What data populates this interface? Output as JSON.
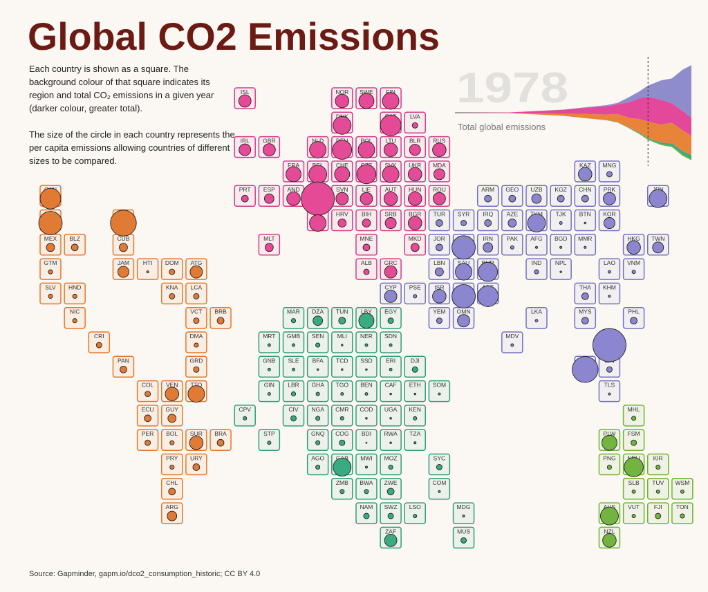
{
  "header": {
    "title": "Global CO2 Emissions"
  },
  "description": [
    "Each country is shown as a square. The background colour of that square indicates its region and total CO₂ emissions in a given year (darker colour, greater total).",
    "The size of the circle in each country represents the per capita emissions allowing countries of different sizes to be compared."
  ],
  "year": 1978,
  "total_label": "Total global emissions",
  "source": "Source: Gapminder, gapm.io/dco2_consumption_historic; CC BY 4.0",
  "region_colors": {
    "am": {
      "border": "#e8762a",
      "fill": "#e07a35"
    },
    "eu": {
      "border": "#d63a8c",
      "fill": "#e54a96"
    },
    "as": {
      "border": "#7470c2",
      "fill": "#8b86cf"
    },
    "af": {
      "border": "#2f9e7a",
      "fill": "#3aaa85"
    },
    "oc": {
      "border": "#6cb52f",
      "fill": "#72b43f"
    }
  },
  "total_chart": {
    "x": [
      1800,
      1850,
      1900,
      1920,
      1940,
      1950,
      1960,
      1970,
      1978,
      1990,
      2000,
      2010,
      2018
    ],
    "series": [
      {
        "color": "#6cb52f",
        "values": [
          0,
          0,
          0.01,
          0.02,
          0.03,
          0.05,
          0.1,
          0.15,
          0.2,
          0.3,
          0.4,
          0.5,
          0.5
        ]
      },
      {
        "color": "#3aaa85",
        "values": [
          0,
          0,
          0,
          0.02,
          0.05,
          0.1,
          0.15,
          0.3,
          0.4,
          0.6,
          0.9,
          1.2,
          1.4
        ]
      },
      {
        "color": "#e8843a",
        "values": [
          0,
          0.03,
          0.7,
          1.5,
          2,
          3,
          3.5,
          5,
          6,
          6.5,
          7.5,
          7.5,
          7
        ]
      },
      {
        "color": "#e3489a",
        "values": [
          0.03,
          0.2,
          1.5,
          2.2,
          3,
          3.5,
          5.5,
          7.5,
          9,
          9,
          7,
          7,
          6.5
        ]
      },
      {
        "color": "#8f8ccc",
        "values": [
          0,
          0,
          0.05,
          0.2,
          0.4,
          0.5,
          1.8,
          2.5,
          4,
          7,
          9,
          15,
          19
        ]
      }
    ]
  },
  "countries": [
    {
      "code": "ISL",
      "region": "eu",
      "per_capita": 5
    },
    {
      "code": "NOR",
      "region": "eu",
      "per_capita": 6
    },
    {
      "code": "SWE",
      "region": "eu",
      "per_capita": 7.5
    },
    {
      "code": "FIN",
      "region": "eu",
      "per_capita": 9
    },
    {
      "code": "DNK",
      "region": "eu",
      "per_capita": 10.5
    },
    {
      "code": "EST",
      "region": "eu",
      "per_capita": 14
    },
    {
      "code": "LVA",
      "region": "eu",
      "per_capita": 1
    },
    {
      "code": "IRL",
      "region": "eu",
      "per_capita": 4.5
    },
    {
      "code": "GBR",
      "region": "eu",
      "per_capita": 5
    },
    {
      "code": "NLD",
      "region": "eu",
      "per_capita": 9
    },
    {
      "code": "DEU",
      "region": "eu",
      "per_capita": 12
    },
    {
      "code": "POL",
      "region": "eu",
      "per_capita": 9
    },
    {
      "code": "LTU",
      "region": "eu",
      "per_capita": 6
    },
    {
      "code": "BLR",
      "region": "eu",
      "per_capita": 4
    },
    {
      "code": "RUS",
      "region": "eu",
      "per_capita": 6
    },
    {
      "code": "FRA",
      "region": "eu",
      "per_capita": 7.5
    },
    {
      "code": "BEL",
      "region": "eu",
      "per_capita": 10.5
    },
    {
      "code": "CHE",
      "region": "eu",
      "per_capita": 7.5
    },
    {
      "code": "CZE",
      "region": "eu",
      "per_capita": 12
    },
    {
      "code": "SVK",
      "region": "eu",
      "per_capita": 9
    },
    {
      "code": "UKR",
      "region": "eu",
      "per_capita": 6
    },
    {
      "code": "MDA",
      "region": "eu",
      "per_capita": 4
    },
    {
      "code": "KAZ",
      "region": "as",
      "per_capita": 6
    },
    {
      "code": "MNG",
      "region": "as",
      "per_capita": 1
    },
    {
      "code": "CAN",
      "region": "am",
      "per_capita": 14
    },
    {
      "code": "PRT",
      "region": "eu",
      "per_capita": 1.5
    },
    {
      "code": "ESP",
      "region": "eu",
      "per_capita": 3
    },
    {
      "code": "AND",
      "region": "eu",
      "per_capita": 6
    },
    {
      "code": "LUX",
      "region": "eu",
      "per_capita": 36
    },
    {
      "code": "SVN",
      "region": "eu",
      "per_capita": 5
    },
    {
      "code": "LIE",
      "region": "eu",
      "per_capita": 5
    },
    {
      "code": "AUT",
      "region": "eu",
      "per_capita": 6
    },
    {
      "code": "HUN",
      "region": "eu",
      "per_capita": 6
    },
    {
      "code": "ROU",
      "region": "eu",
      "per_capita": 5
    },
    {
      "code": "ARM",
      "region": "as",
      "per_capita": 1.5
    },
    {
      "code": "GEO",
      "region": "as",
      "per_capita": 1.5
    },
    {
      "code": "UZB",
      "region": "as",
      "per_capita": 3
    },
    {
      "code": "KGZ",
      "region": "as",
      "per_capita": 1.5
    },
    {
      "code": "CHN",
      "region": "as",
      "per_capita": 1.5
    },
    {
      "code": "PRK",
      "region": "as",
      "per_capita": 5
    },
    {
      "code": "JPN",
      "region": "as",
      "per_capita": 10.5
    },
    {
      "code": "USA",
      "region": "am",
      "per_capita": 18
    },
    {
      "code": "BHS",
      "region": "am",
      "per_capita": 22
    },
    {
      "code": "ITA",
      "region": "eu",
      "per_capita": 9
    },
    {
      "code": "HRV",
      "region": "eu",
      "per_capita": 2.2
    },
    {
      "code": "BIH",
      "region": "eu",
      "per_capita": 2.2
    },
    {
      "code": "SRB",
      "region": "eu",
      "per_capita": 4
    },
    {
      "code": "BGR",
      "region": "eu",
      "per_capita": 6
    },
    {
      "code": "TUR",
      "region": "as",
      "per_capita": 1.5
    },
    {
      "code": "SYR",
      "region": "as",
      "per_capita": 1
    },
    {
      "code": "IRQ",
      "region": "as",
      "per_capita": 1.5
    },
    {
      "code": "AZE",
      "region": "as",
      "per_capita": 2.2
    },
    {
      "code": "TKM",
      "region": "as",
      "per_capita": 10.5
    },
    {
      "code": "TJK",
      "region": "as",
      "per_capita": 0.25
    },
    {
      "code": "BTN",
      "region": "as",
      "per_capita": 0.1
    },
    {
      "code": "KOR",
      "region": "as",
      "per_capita": 4
    },
    {
      "code": "MEX",
      "region": "am",
      "per_capita": 2.2
    },
    {
      "code": "BLZ",
      "region": "am",
      "per_capita": 1.5
    },
    {
      "code": "CUB",
      "region": "am",
      "per_capita": 2.2
    },
    {
      "code": "MLT",
      "region": "eu",
      "per_capita": 2.2
    },
    {
      "code": "MNE",
      "region": "eu",
      "per_capita": 1.5
    },
    {
      "code": "MKD",
      "region": "eu",
      "per_capita": 2.2
    },
    {
      "code": "JOR",
      "region": "as",
      "per_capita": 1.5
    },
    {
      "code": "KWT",
      "region": "as",
      "per_capita": 18
    },
    {
      "code": "IRN",
      "region": "as",
      "per_capita": 3
    },
    {
      "code": "PAK",
      "region": "as",
      "per_capita": 0.4
    },
    {
      "code": "AFG",
      "region": "as",
      "per_capita": 0.15
    },
    {
      "code": "BGD",
      "region": "as",
      "per_capita": 0.15
    },
    {
      "code": "MMR",
      "region": "as",
      "per_capita": 0.15
    },
    {
      "code": "HKG",
      "region": "as",
      "per_capita": 6
    },
    {
      "code": "TWN",
      "region": "as",
      "per_capita": 4
    },
    {
      "code": "GTM",
      "region": "am",
      "per_capita": 0.6
    },
    {
      "code": "JAM",
      "region": "am",
      "per_capita": 4
    },
    {
      "code": "HTI",
      "region": "am",
      "per_capita": 0.15
    },
    {
      "code": "DOM",
      "region": "am",
      "per_capita": 1
    },
    {
      "code": "ATG",
      "region": "am",
      "per_capita": 5
    },
    {
      "code": "ALB",
      "region": "eu",
      "per_capita": 1
    },
    {
      "code": "GRC",
      "region": "eu",
      "per_capita": 5
    },
    {
      "code": "LBN",
      "region": "as",
      "per_capita": 2.2
    },
    {
      "code": "SAU",
      "region": "as",
      "per_capita": 9
    },
    {
      "code": "BHR",
      "region": "as",
      "per_capita": 12
    },
    {
      "code": "IND",
      "region": "as",
      "per_capita": 0.6
    },
    {
      "code": "NPL",
      "region": "as",
      "per_capita": 0.1
    },
    {
      "code": "LAO",
      "region": "as",
      "per_capita": 0.25
    },
    {
      "code": "VNM",
      "region": "as",
      "per_capita": 0.4
    },
    {
      "code": "SLV",
      "region": "am",
      "per_capita": 0.6
    },
    {
      "code": "HND",
      "region": "am",
      "per_capita": 0.6
    },
    {
      "code": "KNA",
      "region": "am",
      "per_capita": 1
    },
    {
      "code": "LCA",
      "region": "am",
      "per_capita": 1
    },
    {
      "code": "CYP",
      "region": "as",
      "per_capita": 5
    },
    {
      "code": "PSE",
      "region": "as",
      "per_capita": 0.4
    },
    {
      "code": "ISR",
      "region": "as",
      "per_capita": 6
    },
    {
      "code": "QAT",
      "region": "as",
      "per_capita": 18
    },
    {
      "code": "ARE",
      "region": "as",
      "per_capita": 14
    },
    {
      "code": "THA",
      "region": "as",
      "per_capita": 1.5
    },
    {
      "code": "KHM",
      "region": "as",
      "per_capita": 0.15
    },
    {
      "code": "NIC",
      "region": "am",
      "per_capita": 0.6
    },
    {
      "code": "VCT",
      "region": "am",
      "per_capita": 1
    },
    {
      "code": "BRB",
      "region": "am",
      "per_capita": 1.5
    },
    {
      "code": "MAR",
      "region": "af",
      "per_capita": 0.6
    },
    {
      "code": "DZA",
      "region": "af",
      "per_capita": 3
    },
    {
      "code": "TUN",
      "region": "af",
      "per_capita": 1.5
    },
    {
      "code": "LBY",
      "region": "af",
      "per_capita": 7.5
    },
    {
      "code": "EGY",
      "region": "af",
      "per_capita": 1
    },
    {
      "code": "YEM",
      "region": "as",
      "per_capita": 1
    },
    {
      "code": "OMN",
      "region": "as",
      "per_capita": 5
    },
    {
      "code": "LKA",
      "region": "as",
      "per_capita": 0.25
    },
    {
      "code": "MYS",
      "region": "as",
      "per_capita": 1.5
    },
    {
      "code": "PHL",
      "region": "as",
      "per_capita": 1.5
    },
    {
      "code": "CRI",
      "region": "am",
      "per_capita": 1
    },
    {
      "code": "DMA",
      "region": "am",
      "per_capita": 0.6
    },
    {
      "code": "MRT",
      "region": "af",
      "per_capita": 0.25
    },
    {
      "code": "GMB",
      "region": "af",
      "per_capita": 0.25
    },
    {
      "code": "SEN",
      "region": "af",
      "per_capita": 0.6
    },
    {
      "code": "MLI",
      "region": "af",
      "per_capita": 0.1
    },
    {
      "code": "NER",
      "region": "af",
      "per_capita": 0.25
    },
    {
      "code": "SDN",
      "region": "af",
      "per_capita": 0.25
    },
    {
      "code": "MDV",
      "region": "as",
      "per_capita": 0.25
    },
    {
      "code": "BRN",
      "region": "as",
      "per_capita": 36
    },
    {
      "code": "PAN",
      "region": "am",
      "per_capita": 1.5
    },
    {
      "code": "GRD",
      "region": "am",
      "per_capita": 1
    },
    {
      "code": "GNB",
      "region": "af",
      "per_capita": 0.25
    },
    {
      "code": "SLE",
      "region": "af",
      "per_capita": 0.25
    },
    {
      "code": "BFA",
      "region": "af",
      "per_capita": 0.1
    },
    {
      "code": "TCD",
      "region": "af",
      "per_capita": 0.1
    },
    {
      "code": "SSD",
      "region": "af",
      "per_capita": 0.1
    },
    {
      "code": "ERI",
      "region": "af",
      "per_capita": 0.25
    },
    {
      "code": "DJI",
      "region": "af",
      "per_capita": 1
    },
    {
      "code": "SGP",
      "region": "as",
      "per_capita": 22
    },
    {
      "code": "IDN",
      "region": "as",
      "per_capita": 1
    },
    {
      "code": "COL",
      "region": "am",
      "per_capita": 1
    },
    {
      "code": "VEN",
      "region": "am",
      "per_capita": 6
    },
    {
      "code": "TTO",
      "region": "am",
      "per_capita": 9
    },
    {
      "code": "GIN",
      "region": "af",
      "per_capita": 0.25
    },
    {
      "code": "LBR",
      "region": "af",
      "per_capita": 0.6
    },
    {
      "code": "GHA",
      "region": "af",
      "per_capita": 0.4
    },
    {
      "code": "TGO",
      "region": "af",
      "per_capita": 0.25
    },
    {
      "code": "BEN",
      "region": "af",
      "per_capita": 0.25
    },
    {
      "code": "CAF",
      "region": "af",
      "per_capita": 0.1
    },
    {
      "code": "ETH",
      "region": "af",
      "per_capita": 0.1
    },
    {
      "code": "SOM",
      "region": "af",
      "per_capita": 0.15
    },
    {
      "code": "TLS",
      "region": "as",
      "per_capita": 0.15
    },
    {
      "code": "ECU",
      "region": "am",
      "per_capita": 1.5
    },
    {
      "code": "GUY",
      "region": "am",
      "per_capita": 2.2
    },
    {
      "code": "CPV",
      "region": "af",
      "per_capita": 0.4
    },
    {
      "code": "CIV",
      "region": "af",
      "per_capita": 1
    },
    {
      "code": "NGA",
      "region": "af",
      "per_capita": 0.6
    },
    {
      "code": "CMR",
      "region": "af",
      "per_capita": 0.4
    },
    {
      "code": "COD",
      "region": "af",
      "per_capita": 0.1
    },
    {
      "code": "UGA",
      "region": "af",
      "per_capita": 0.1
    },
    {
      "code": "KEN",
      "region": "af",
      "per_capita": 0.4
    },
    {
      "code": "MHL",
      "region": "oc",
      "per_capita": 0.6
    },
    {
      "code": "PER",
      "region": "am",
      "per_capita": 1
    },
    {
      "code": "BOL",
      "region": "am",
      "per_capita": 0.6
    },
    {
      "code": "SUR",
      "region": "am",
      "per_capita": 6
    },
    {
      "code": "BRA",
      "region": "am",
      "per_capita": 1.5
    },
    {
      "code": "STP",
      "region": "af",
      "per_capita": 0.4
    },
    {
      "code": "GNQ",
      "region": "af",
      "per_capita": 0.6
    },
    {
      "code": "COG",
      "region": "af",
      "per_capita": 1
    },
    {
      "code": "BDI",
      "region": "af",
      "per_capita": 0.05
    },
    {
      "code": "RWA",
      "region": "af",
      "per_capita": 0.1
    },
    {
      "code": "TZA",
      "region": "af",
      "per_capita": 0.15
    },
    {
      "code": "PLW",
      "region": "oc",
      "per_capita": 7.5
    },
    {
      "code": "FSM",
      "region": "oc",
      "per_capita": 1
    },
    {
      "code": "PRY",
      "region": "am",
      "per_capita": 0.6
    },
    {
      "code": "URY",
      "region": "am",
      "per_capita": 1.5
    },
    {
      "code": "AGO",
      "region": "af",
      "per_capita": 0.6
    },
    {
      "code": "GAB",
      "region": "af",
      "per_capita": 10.5
    },
    {
      "code": "MWI",
      "region": "af",
      "per_capita": 0.15
    },
    {
      "code": "MOZ",
      "region": "af",
      "per_capita": 0.6
    },
    {
      "code": "SYC",
      "region": "af",
      "per_capita": 1
    },
    {
      "code": "PNG",
      "region": "oc",
      "per_capita": 0.6
    },
    {
      "code": "NRU",
      "region": "oc",
      "per_capita": 12
    },
    {
      "code": "KIR",
      "region": "oc",
      "per_capita": 0.6
    },
    {
      "code": "CHL",
      "region": "am",
      "per_capita": 1.5
    },
    {
      "code": "ZMB",
      "region": "af",
      "per_capita": 0.6
    },
    {
      "code": "BWA",
      "region": "af",
      "per_capita": 0.6
    },
    {
      "code": "ZWE",
      "region": "af",
      "per_capita": 1.5
    },
    {
      "code": "COM",
      "region": "af",
      "per_capita": 0.15
    },
    {
      "code": "SLB",
      "region": "oc",
      "per_capita": 0.4
    },
    {
      "code": "TUV",
      "region": "oc",
      "per_capita": 0.4
    },
    {
      "code": "WSM",
      "region": "oc",
      "per_capita": 0.4
    },
    {
      "code": "ARG",
      "region": "am",
      "per_capita": 3
    },
    {
      "code": "NAM",
      "region": "af",
      "per_capita": 1
    },
    {
      "code": "SWZ",
      "region": "af",
      "per_capita": 1
    },
    {
      "code": "LSO",
      "region": "af",
      "per_capita": 0.4
    },
    {
      "code": "MDG",
      "region": "af",
      "per_capita": 0.15
    },
    {
      "code": "AUS",
      "region": "oc",
      "per_capita": 10.5
    },
    {
      "code": "VUT",
      "region": "oc",
      "per_capita": 0.4
    },
    {
      "code": "FJI",
      "region": "oc",
      "per_capita": 1
    },
    {
      "code": "TON",
      "region": "oc",
      "per_capita": 0.6
    },
    {
      "code": "ZAF",
      "region": "af",
      "per_capita": 5
    },
    {
      "code": "MUS",
      "region": "af",
      "per_capita": 1
    },
    {
      "code": "NZL",
      "region": "oc",
      "per_capita": 6
    }
  ]
}
